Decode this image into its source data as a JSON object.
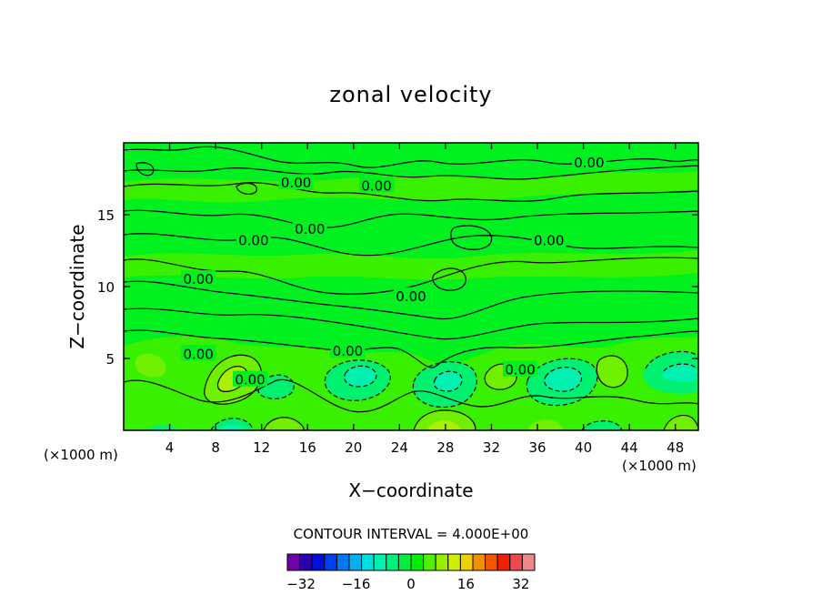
{
  "chart_data": {
    "type": "heatmap",
    "title": "zonal velocity",
    "xlabel": "X−coordinate",
    "ylabel": "Z−coordinate",
    "x_unit_left": "(×1000 m)",
    "x_unit_right": "(×1000 m)",
    "xlim": [
      0,
      50
    ],
    "ylim": [
      0,
      20
    ],
    "x_ticks": [
      4,
      8,
      12,
      16,
      20,
      24,
      28,
      32,
      36,
      40,
      44,
      48
    ],
    "y_ticks": [
      5,
      10,
      15
    ],
    "contour_interval_text": "CONTOUR INTERVAL = 4.000E+00",
    "contour_labels": [
      {
        "text": "0.00",
        "x": 15.0,
        "y": 17.2
      },
      {
        "text": "0.00",
        "x": 22.0,
        "y": 17.0
      },
      {
        "text": "0.00",
        "x": 40.5,
        "y": 18.6
      },
      {
        "text": "0.00",
        "x": 16.2,
        "y": 14.0
      },
      {
        "text": "0.00",
        "x": 11.3,
        "y": 13.2
      },
      {
        "text": "0.00",
        "x": 37.0,
        "y": 13.2
      },
      {
        "text": "0.00",
        "x": 6.5,
        "y": 10.5
      },
      {
        "text": "0.00",
        "x": 25.0,
        "y": 9.3
      },
      {
        "text": "0.00",
        "x": 19.5,
        "y": 5.5
      },
      {
        "text": "0.00",
        "x": 6.5,
        "y": 5.3
      },
      {
        "text": "0.00",
        "x": 11.0,
        "y": 3.5
      },
      {
        "text": "0.00",
        "x": 34.5,
        "y": 4.2
      }
    ],
    "colorbar": {
      "range": [
        -36,
        36
      ],
      "interval": 4,
      "tick_labels": [
        "−32",
        "−16",
        "0",
        "16",
        "32"
      ],
      "tick_values": [
        -32,
        -16,
        0,
        16,
        32
      ],
      "colors": [
        "#7000a8",
        "#2c00b0",
        "#0010d8",
        "#0040f0",
        "#0078f0",
        "#00b0f0",
        "#00e0e0",
        "#00f0b0",
        "#00f080",
        "#00f040",
        "#00f000",
        "#50f000",
        "#98f000",
        "#d0f000",
        "#f0d000",
        "#f09000",
        "#f05800",
        "#f02000",
        "#f04850",
        "#f08888"
      ]
    },
    "field_colors": {
      "background": "#00f020",
      "slightly_positive": "#38f000",
      "positive": "#70f000",
      "strong_positive": "#a8f000",
      "slightly_negative": "#00f070",
      "negative": "#00f0b0"
    }
  }
}
